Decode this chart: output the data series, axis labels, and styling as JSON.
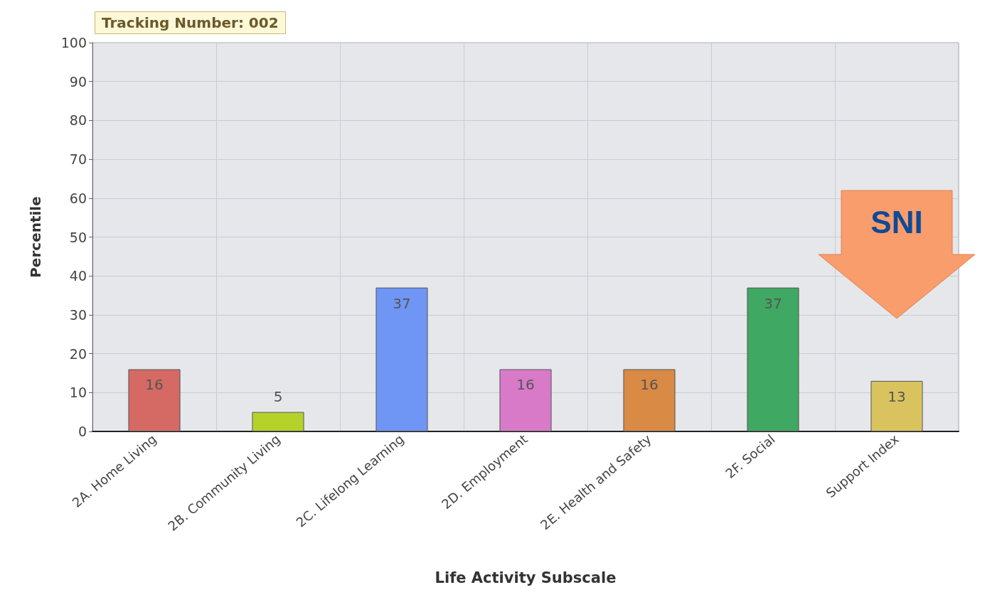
{
  "chart_data": {
    "type": "bar",
    "xlabel": "Life Activity Subscale",
    "ylabel": "Percentile",
    "categories": [
      "2A. Home Living",
      "2B. Community Living",
      "2C. Lifelong Learning",
      "2D. Employment",
      "2E. Health and Safety",
      "2F. Social",
      "Support Index"
    ],
    "values": [
      16,
      5,
      37,
      16,
      16,
      37,
      13
    ],
    "colors": [
      "#d46a63",
      "#b5d22a",
      "#6f95f5",
      "#d87ac8",
      "#d98a45",
      "#3fa862",
      "#d9c35f"
    ],
    "ylim": [
      0,
      100
    ],
    "yticks": [
      0,
      10,
      20,
      30,
      40,
      50,
      60,
      70,
      80,
      90,
      100
    ],
    "grid": true,
    "data_labels": true,
    "annotations": [
      "Tracking Number: 002",
      "SNI"
    ]
  }
}
